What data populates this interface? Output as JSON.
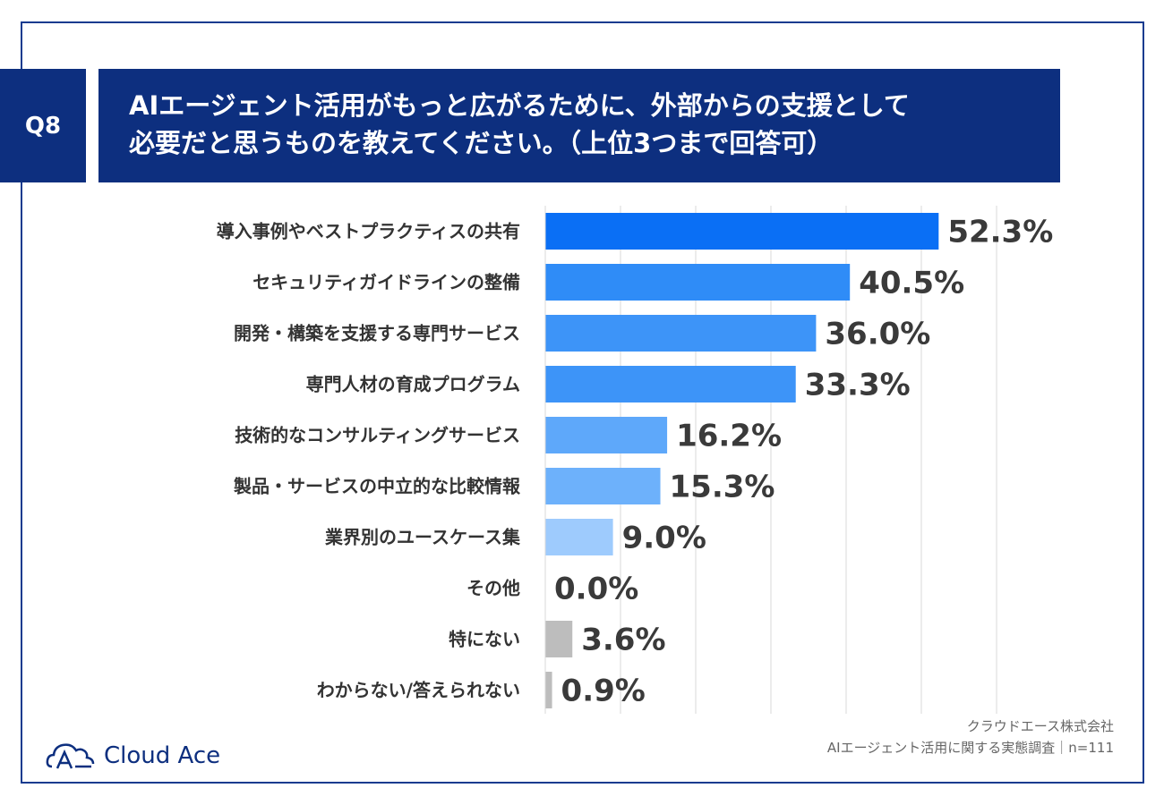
{
  "question_label": "Q8",
  "title_lines": [
    "AIエージェント活用がもっと広がるために、外部からの支援として",
    "必要だと思うものを教えてください。（上位3つまで回答可）"
  ],
  "chart_data": {
    "type": "bar",
    "orientation": "horizontal",
    "categories": [
      "導入事例やベストプラクティスの共有",
      "セキュリティガイドラインの整備",
      "開発・構築を支援する専門サービス",
      "専門人材の育成プログラム",
      "技術的なコンサルティングサービス",
      "製品・サービスの中立的な比較情報",
      "業界別のユースケース集",
      "その他",
      "特にない",
      "わからない/答えられない"
    ],
    "values": [
      52.3,
      40.5,
      36.0,
      33.3,
      16.2,
      15.3,
      9.0,
      0.0,
      3.6,
      0.9
    ],
    "value_labels": [
      "52.3%",
      "40.5%",
      "36.0%",
      "33.3%",
      "16.2%",
      "15.3%",
      "9.0%",
      "0.0%",
      "3.6%",
      "0.9%"
    ],
    "colors": [
      "#0a6ff5",
      "#2f8cf7",
      "#3d94f8",
      "#3d94f8",
      "#5ea8fa",
      "#6db1fb",
      "#9ecbfd",
      "#bdbdbd",
      "#bdbdbd",
      "#bdbdbd"
    ],
    "xlim": [
      0,
      60
    ],
    "grid": true
  },
  "credit_lines": [
    "クラウドエース株式会社",
    "AIエージェント活用に関する実態調査｜n=111"
  ],
  "logo": {
    "text": "Cloud Ace",
    "color": "#0d2f7f",
    "icon": "cloud-a-icon"
  }
}
